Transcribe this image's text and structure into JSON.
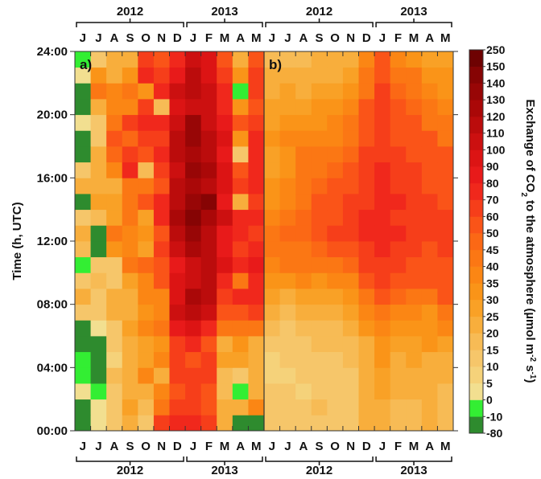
{
  "chart_data": {
    "type": "heatmap",
    "ylabel": "Time (h, UTC)",
    "y_ticks": [
      "00:00",
      "04:00",
      "08:00",
      "12:00",
      "16:00",
      "20:00",
      "24:00"
    ],
    "months": [
      "J",
      "J",
      "A",
      "S",
      "O",
      "N",
      "D",
      "J",
      "F",
      "M",
      "A",
      "M"
    ],
    "years": [
      {
        "label": "2012",
        "start": 0,
        "end": 7
      },
      {
        "label": "2013",
        "start": 7,
        "end": 12
      }
    ],
    "panels": [
      {
        "label": "a)",
        "hours_rows_from_midnight": [
          [
            -30,
            0,
            10,
            20,
            10,
            60,
            70,
            70,
            60,
            20,
            -30,
            -30
          ],
          [
            -30,
            0,
            10,
            25,
            15,
            40,
            60,
            60,
            50,
            20,
            20,
            35
          ],
          [
            0,
            -10,
            10,
            20,
            20,
            35,
            55,
            60,
            50,
            15,
            -10,
            20
          ],
          [
            -10,
            -30,
            15,
            20,
            35,
            20,
            60,
            65,
            60,
            15,
            10,
            20
          ],
          [
            -10,
            -30,
            5,
            20,
            25,
            35,
            60,
            55,
            60,
            25,
            25,
            20
          ],
          [
            -30,
            -30,
            10,
            20,
            25,
            30,
            60,
            70,
            50,
            20,
            30,
            20
          ],
          [
            -30,
            0,
            10,
            25,
            35,
            40,
            80,
            90,
            70,
            40,
            40,
            40
          ],
          [
            10,
            10,
            20,
            20,
            30,
            35,
            100,
            110,
            100,
            50,
            50,
            60
          ],
          [
            20,
            10,
            20,
            20,
            35,
            35,
            95,
            120,
            110,
            60,
            70,
            70
          ],
          [
            10,
            15,
            10,
            25,
            35,
            50,
            90,
            100,
            110,
            70,
            40,
            70
          ],
          [
            -10,
            10,
            10,
            40,
            45,
            55,
            80,
            100,
            110,
            90,
            70,
            80
          ],
          [
            15,
            -30,
            30,
            35,
            25,
            60,
            100,
            120,
            110,
            80,
            60,
            70
          ],
          [
            20,
            -30,
            40,
            35,
            30,
            50,
            110,
            130,
            110,
            80,
            70,
            60
          ],
          [
            10,
            15,
            25,
            40,
            25,
            70,
            120,
            140,
            120,
            100,
            70,
            70
          ],
          [
            -30,
            25,
            25,
            40,
            50,
            70,
            110,
            130,
            140,
            80,
            20,
            60
          ],
          [
            20,
            20,
            20,
            40,
            40,
            50,
            110,
            120,
            110,
            90,
            60,
            70
          ],
          [
            10,
            20,
            35,
            70,
            15,
            60,
            100,
            130,
            120,
            90,
            50,
            70
          ],
          [
            -30,
            20,
            45,
            60,
            50,
            70,
            110,
            120,
            110,
            80,
            10,
            70
          ],
          [
            -30,
            10,
            50,
            45,
            60,
            60,
            110,
            130,
            110,
            90,
            30,
            70
          ],
          [
            0,
            10,
            40,
            60,
            70,
            70,
            100,
            130,
            100,
            80,
            50,
            60
          ],
          [
            -30,
            20,
            35,
            35,
            60,
            15,
            90,
            100,
            100,
            70,
            30,
            50
          ],
          [
            -30,
            40,
            35,
            40,
            30,
            70,
            100,
            110,
            100,
            70,
            -10,
            60
          ],
          [
            0,
            30,
            20,
            30,
            70,
            60,
            80,
            110,
            90,
            60,
            30,
            60
          ],
          [
            -10,
            10,
            20,
            20,
            60,
            50,
            70,
            100,
            90,
            50,
            20,
            50
          ]
        ]
      },
      {
        "label": "b)",
        "hours_rows_from_midnight": [
          [
            10,
            10,
            10,
            10,
            10,
            10,
            20,
            20,
            15,
            15,
            20,
            15
          ],
          [
            10,
            10,
            10,
            15,
            10,
            10,
            20,
            20,
            15,
            15,
            20,
            15
          ],
          [
            10,
            10,
            5,
            10,
            10,
            10,
            20,
            25,
            20,
            20,
            20,
            15
          ],
          [
            5,
            5,
            10,
            10,
            10,
            10,
            20,
            25,
            20,
            20,
            20,
            20
          ],
          [
            5,
            10,
            10,
            10,
            10,
            15,
            20,
            30,
            20,
            25,
            20,
            20
          ],
          [
            10,
            10,
            10,
            15,
            15,
            15,
            20,
            30,
            25,
            25,
            30,
            25
          ],
          [
            15,
            10,
            15,
            15,
            15,
            20,
            30,
            35,
            30,
            30,
            30,
            35
          ],
          [
            20,
            15,
            20,
            20,
            20,
            25,
            35,
            40,
            35,
            35,
            30,
            40
          ],
          [
            25,
            20,
            25,
            25,
            25,
            30,
            40,
            50,
            45,
            40,
            40,
            50
          ],
          [
            30,
            30,
            35,
            30,
            35,
            35,
            50,
            60,
            50,
            50,
            50,
            50
          ],
          [
            35,
            40,
            40,
            40,
            40,
            45,
            60,
            60,
            60,
            50,
            50,
            50
          ],
          [
            40,
            40,
            40,
            45,
            50,
            50,
            60,
            70,
            60,
            60,
            50,
            60
          ],
          [
            40,
            45,
            45,
            50,
            60,
            60,
            70,
            70,
            70,
            60,
            60,
            60
          ],
          [
            35,
            40,
            45,
            50,
            50,
            60,
            70,
            70,
            60,
            60,
            60,
            60
          ],
          [
            30,
            35,
            40,
            50,
            50,
            60,
            60,
            70,
            70,
            60,
            60,
            50
          ],
          [
            30,
            35,
            40,
            45,
            50,
            50,
            60,
            70,
            60,
            60,
            50,
            50
          ],
          [
            25,
            30,
            40,
            40,
            45,
            50,
            60,
            70,
            60,
            60,
            50,
            50
          ],
          [
            25,
            30,
            40,
            40,
            40,
            45,
            60,
            60,
            60,
            50,
            50,
            50
          ],
          [
            30,
            35,
            35,
            35,
            35,
            40,
            50,
            60,
            50,
            50,
            50,
            40
          ],
          [
            25,
            30,
            30,
            30,
            35,
            40,
            50,
            60,
            50,
            50,
            40,
            40
          ],
          [
            25,
            25,
            25,
            30,
            30,
            35,
            50,
            60,
            50,
            45,
            40,
            35
          ],
          [
            20,
            25,
            20,
            25,
            25,
            30,
            40,
            60,
            45,
            40,
            35,
            30
          ],
          [
            20,
            20,
            20,
            20,
            20,
            25,
            40,
            50,
            40,
            40,
            30,
            30
          ],
          [
            15,
            15,
            15,
            20,
            20,
            20,
            35,
            50,
            35,
            30,
            25,
            25
          ]
        ]
      }
    ],
    "colorbar": {
      "label_before_sub": "Exchange of CO",
      "label_sub": "2",
      "label_mid": " to the atmosphere (µmol m",
      "label_sup1": "-2",
      "label_s": " s",
      "label_sup2": "-1",
      "label_end": ")",
      "ticks": [
        "250",
        "150",
        "140",
        "130",
        "120",
        "110",
        "100",
        "90",
        "80",
        "70",
        "60",
        "50",
        "45",
        "40",
        "35",
        "30",
        "25",
        "20",
        "15",
        "10",
        "5",
        "0",
        "-10",
        "-80"
      ],
      "bins": [
        {
          "min": -80,
          "max": -10,
          "color": "#2e8b2e"
        },
        {
          "min": -10,
          "max": 0,
          "color": "#33ee33"
        },
        {
          "min": 0,
          "max": 5,
          "color": "#f2df90"
        },
        {
          "min": 5,
          "max": 10,
          "color": "#f5d27a"
        },
        {
          "min": 10,
          "max": 15,
          "color": "#f6c66a"
        },
        {
          "min": 15,
          "max": 20,
          "color": "#f7bb55"
        },
        {
          "min": 20,
          "max": 25,
          "color": "#f8ae3c"
        },
        {
          "min": 25,
          "max": 30,
          "color": "#f9a126"
        },
        {
          "min": 30,
          "max": 35,
          "color": "#fa9418"
        },
        {
          "min": 35,
          "max": 40,
          "color": "#fb8614"
        },
        {
          "min": 40,
          "max": 45,
          "color": "#fb7714"
        },
        {
          "min": 45,
          "max": 50,
          "color": "#fb6815"
        },
        {
          "min": 50,
          "max": 60,
          "color": "#fa5418"
        },
        {
          "min": 60,
          "max": 70,
          "color": "#f63e1a"
        },
        {
          "min": 70,
          "max": 80,
          "color": "#f0281c"
        },
        {
          "min": 80,
          "max": 90,
          "color": "#e81a1a"
        },
        {
          "min": 90,
          "max": 100,
          "color": "#dc1414"
        },
        {
          "min": 100,
          "max": 110,
          "color": "#cc1010"
        },
        {
          "min": 110,
          "max": 120,
          "color": "#bb0c0c"
        },
        {
          "min": 120,
          "max": 130,
          "color": "#aa0808"
        },
        {
          "min": 130,
          "max": 140,
          "color": "#980606"
        },
        {
          "min": 140,
          "max": 150,
          "color": "#860404"
        },
        {
          "min": 150,
          "max": 250,
          "color": "#6e0202"
        }
      ]
    }
  }
}
